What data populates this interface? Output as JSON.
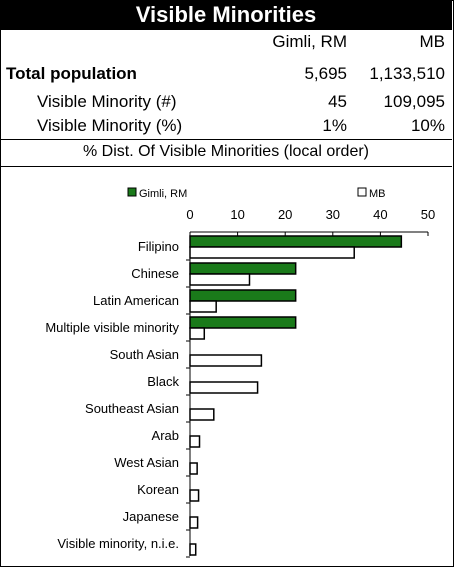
{
  "title": "Visible Minorities",
  "table": {
    "col1": "Gimli, RM",
    "col2": "MB",
    "rows": [
      {
        "label": "Total population",
        "v1": "5,695",
        "v2": "1,133,510",
        "bold": true
      },
      {
        "label": "Visible Minority (#)",
        "v1": "45",
        "v2": "109,095",
        "bold": false
      },
      {
        "label": "Visible Minority (%)",
        "v1": "1%",
        "v2": "10%",
        "bold": false
      }
    ]
  },
  "chart_heading": "% Dist. Of Visible Minorities (local order)",
  "chart_data": {
    "type": "bar",
    "orientation": "horizontal",
    "categories": [
      "Filipino",
      "Chinese",
      "Latin American",
      "Multiple visible minority",
      "South Asian",
      "Black",
      "Southeast Asian",
      "Arab",
      "West Asian",
      "Korean",
      "Japanese",
      "Visible minority, n.i.e."
    ],
    "series": [
      {
        "name": "Gimli, RM",
        "color": "#1a7a1a",
        "values": [
          44.4,
          22.2,
          22.2,
          22.2,
          0,
          0,
          0,
          0,
          0,
          0,
          0,
          0
        ]
      },
      {
        "name": "MB",
        "color": "#ffffff",
        "values": [
          34.5,
          12.5,
          5.5,
          3.0,
          15.0,
          14.2,
          5.0,
          2.0,
          1.5,
          1.8,
          1.6,
          1.2
        ]
      }
    ],
    "xlim": [
      0,
      50
    ],
    "xticks": [
      "0",
      "10",
      "20",
      "30",
      "40",
      "50"
    ],
    "legend": "top",
    "grid": false
  }
}
